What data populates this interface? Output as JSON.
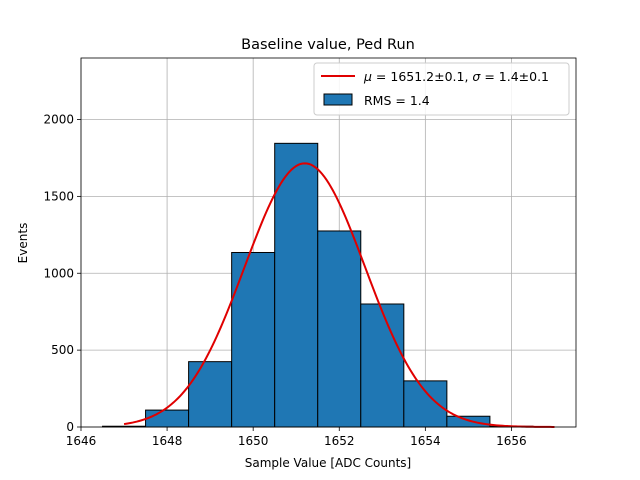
{
  "chart_data": {
    "type": "bar",
    "title": "Baseline value, Ped Run",
    "xlabel": "Sample Value [ADC Counts]",
    "ylabel": "Events",
    "xlim": [
      1646,
      1657.5
    ],
    "ylim": [
      0,
      2400
    ],
    "xticks": [
      1646,
      1648,
      1650,
      1652,
      1654,
      1656
    ],
    "xtick_labels": [
      "1646",
      "1648",
      "1650",
      "1652",
      "1654",
      "1656"
    ],
    "yticks": [
      0,
      500,
      1000,
      1500,
      2000
    ],
    "ytick_labels": [
      "0",
      "500",
      "1000",
      "1500",
      "2000"
    ],
    "grid": true,
    "bin_edges": [
      1646.5,
      1647.5,
      1648.5,
      1649.5,
      1650.5,
      1651.5,
      1652.5,
      1653.5,
      1654.5,
      1655.5,
      1656.5
    ],
    "counts": [
      5,
      110,
      425,
      1135,
      1845,
      1275,
      800,
      300,
      70,
      5
    ],
    "fit": {
      "type": "gaussian",
      "mu": 1651.2,
      "sigma": 1.4,
      "amplitude": 1715,
      "x_range": [
        1647,
        1657
      ]
    },
    "legend": {
      "location": "top-right",
      "fit_label": "$\\mu = 1651.2\\pm0.1$, $\\sigma = 1.4\\pm0.1$",
      "fit_label_mu": "μ",
      "fit_label_mid": " = 1651.2±0.1, ",
      "fit_label_sigma": "σ",
      "fit_label_end": " = 1.4±0.1",
      "hist_label": "RMS = 1.4"
    },
    "colors": {
      "bar": "#1f77b4",
      "fit": "#e00000",
      "edge": "#000000"
    }
  }
}
